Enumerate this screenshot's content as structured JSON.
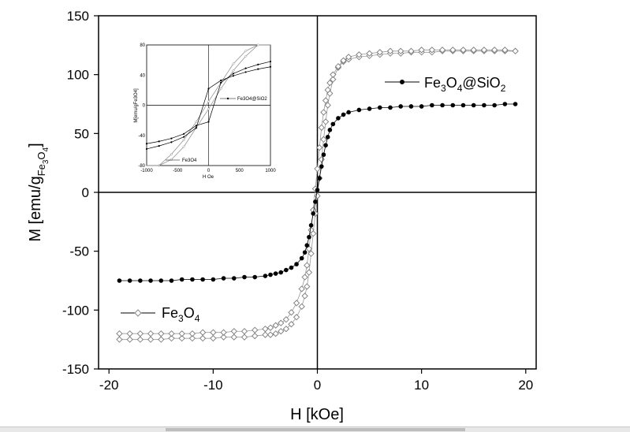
{
  "chart_data": [
    {
      "type": "scatter",
      "title": "",
      "xlabel": "H [kOe]",
      "ylabel_parts": {
        "main": "M [emu/g",
        "sub1": "Fe",
        "sub2": "3",
        "sub3": "O",
        "sub4": "4",
        "close": "]"
      },
      "xlim": [
        -21,
        21
      ],
      "ylim": [
        -150,
        150
      ],
      "x_ticks": [
        -20,
        -10,
        0,
        10,
        20
      ],
      "y_ticks": [
        -150,
        -100,
        -50,
        0,
        50,
        100,
        150
      ],
      "grid": false,
      "series": [
        {
          "name": "Fe3O4",
          "legend_parts": {
            "a": "Fe",
            "b": "3",
            "c": "O",
            "d": "4"
          },
          "marker": "open-diamond",
          "color": "#9a9a9a",
          "x": [
            -19,
            -18,
            -17,
            -16,
            -15,
            -14,
            -13,
            -12,
            -11,
            -10,
            -9,
            -8,
            -7,
            -6,
            -5,
            -4.5,
            -4,
            -3.5,
            -3,
            -2.5,
            -2,
            -1.5,
            -1.2,
            -1,
            -0.8,
            -0.6,
            -0.4,
            -0.2,
            0,
            0.2,
            0.4,
            0.6,
            0.8,
            1,
            1.2,
            1.5,
            2,
            2.5,
            3,
            4,
            5,
            6,
            7,
            8,
            9,
            10,
            11,
            12,
            13,
            14,
            15,
            16,
            17,
            18,
            19
          ],
          "y_lower": [
            -125,
            -125,
            -125,
            -125,
            -125,
            -124,
            -124,
            -124,
            -124,
            -124,
            -123,
            -123,
            -123,
            -122,
            -121,
            -121,
            -120,
            -118,
            -116,
            -112,
            -106,
            -97,
            -88,
            -80,
            -68,
            -52,
            -35,
            -18,
            -3,
            12,
            28,
            45,
            60,
            74,
            84,
            96,
            106,
            111,
            113,
            115,
            116,
            117,
            118,
            118,
            119,
            119,
            119,
            120,
            120,
            120,
            120,
            120,
            120,
            120,
            120
          ],
          "y_upper": [
            -120,
            -120,
            -120,
            -120,
            -120,
            -120,
            -120,
            -120,
            -119,
            -119,
            -119,
            -118,
            -118,
            -117,
            -116,
            -115,
            -113,
            -111,
            -108,
            -102,
            -94,
            -82,
            -72,
            -62,
            -48,
            -32,
            -15,
            3,
            20,
            38,
            55,
            68,
            78,
            87,
            93,
            100,
            107,
            112,
            115,
            117,
            118,
            119,
            120,
            120,
            120,
            121,
            121,
            121,
            121,
            121,
            121,
            121,
            121,
            121,
            120
          ]
        },
        {
          "name": "Fe3O4@SiO2",
          "legend_parts": {
            "a": "Fe",
            "b": "3",
            "c": "O",
            "d": "4",
            "e": "@SiO",
            "f": "2"
          },
          "marker": "filled-circle",
          "color": "#000000",
          "x": [
            -19,
            -18,
            -17,
            -16,
            -15,
            -14,
            -13,
            -12,
            -11,
            -10,
            -9,
            -8,
            -7,
            -6,
            -5,
            -4.5,
            -4,
            -3.5,
            -3,
            -2.5,
            -2,
            -1.5,
            -1.2,
            -1,
            -0.8,
            -0.6,
            -0.4,
            -0.2,
            0,
            0.2,
            0.4,
            0.6,
            0.8,
            1,
            1.2,
            1.5,
            2,
            2.5,
            3,
            4,
            5,
            6,
            7,
            8,
            9,
            10,
            11,
            12,
            13,
            14,
            15,
            16,
            17,
            18,
            19
          ],
          "y": [
            -75,
            -75,
            -75,
            -75,
            -75,
            -75,
            -74,
            -74,
            -74,
            -74,
            -73,
            -73,
            -72,
            -72,
            -71,
            -70,
            -69,
            -68,
            -66,
            -64,
            -61,
            -56,
            -51,
            -45,
            -38,
            -28,
            -18,
            -8,
            2,
            12,
            22,
            32,
            40,
            47,
            53,
            58,
            63,
            66,
            68,
            70,
            71,
            72,
            72,
            73,
            73,
            73,
            74,
            74,
            74,
            74,
            74,
            74,
            74,
            75,
            75
          ]
        }
      ]
    },
    {
      "type": "line",
      "title": "",
      "xlabel": "H Oe",
      "ylabel": "M[emu/gFe3O4]",
      "xlim": [
        -1000,
        1000
      ],
      "ylim": [
        -80,
        80
      ],
      "x_ticks": [
        -1000,
        -500,
        0,
        500,
        1000
      ],
      "y_ticks": [
        -80,
        -40,
        0,
        40,
        80
      ],
      "tick_labels_x": [
        "-1000",
        "-500",
        "0",
        "500",
        "1000"
      ],
      "tick_labels_y": [
        "-80",
        "-40",
        "0",
        "40",
        "80"
      ],
      "legend": {
        "fe3o4": "Fe3O4",
        "fesio": "Fe3O4@SiO2"
      },
      "series": [
        {
          "name": "Fe3O4",
          "color": "#8a8a8a",
          "branch_up": {
            "x": [
              -1000,
              -800,
              -600,
              -400,
              -200,
              0,
              200,
              400,
              600,
              800,
              1000
            ],
            "y": [
              -92,
              -80,
              -65,
              -46,
              -22,
              5,
              30,
              55,
              72,
              85,
              95
            ]
          },
          "branch_down": {
            "x": [
              -1000,
              -800,
              -600,
              -400,
              -200,
              0,
              200,
              400,
              600,
              800,
              1000
            ],
            "y": [
              -95,
              -86,
              -72,
              -55,
              -30,
              -5,
              22,
              46,
              65,
              80,
              92
            ]
          }
        },
        {
          "name": "Fe3O4@SiO2",
          "color": "#000000",
          "branch_up": {
            "x": [
              -1000,
              -800,
              -600,
              -400,
              -200,
              0,
              200,
              400,
              600,
              800,
              1000
            ],
            "y": [
              -58,
              -54,
              -49,
              -42,
              -30,
              22,
              33,
              39,
              44,
              48,
              51
            ]
          },
          "branch_down": {
            "x": [
              -1000,
              -800,
              -600,
              -400,
              -200,
              0,
              200,
              400,
              600,
              800,
              1000
            ],
            "y": [
              -51,
              -48,
              -44,
              -38,
              -27,
              -22,
              30,
              42,
              49,
              54,
              58
            ]
          }
        }
      ]
    }
  ]
}
